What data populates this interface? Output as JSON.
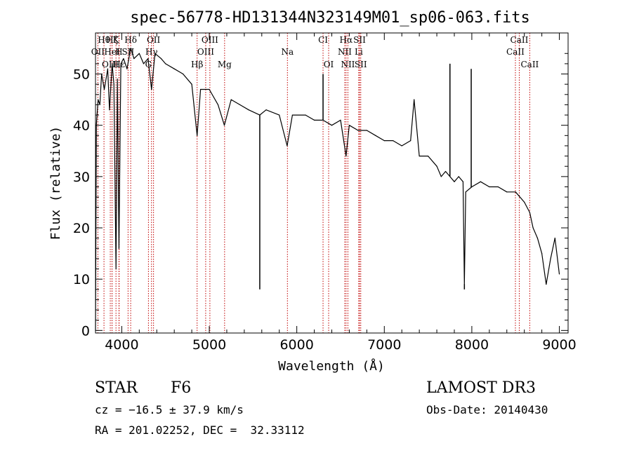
{
  "chart_data": {
    "type": "line",
    "title": "spec-56778-HD131344N323149M01_sp06-063.fits",
    "xlabel": "Wavelength (Å)",
    "ylabel": "Flux (relative)",
    "xlim": [
      3700,
      9100
    ],
    "ylim": [
      -0.5,
      58
    ],
    "xticks": [
      4000,
      5000,
      6000,
      7000,
      8000,
      9000
    ],
    "yticks": [
      0,
      10,
      20,
      30,
      40,
      50
    ],
    "grid": false,
    "series": [
      {
        "name": "spectrum",
        "x": [
          3700,
          3710,
          3730,
          3750,
          3770,
          3800,
          3820,
          3840,
          3860,
          3890,
          3910,
          3934,
          3950,
          3968,
          3990,
          4020,
          4060,
          4102,
          4140,
          4200,
          4250,
          4300,
          4340,
          4380,
          4450,
          4500,
          4600,
          4700,
          4800,
          4861,
          4900,
          5000,
          5100,
          5172,
          5250,
          5350,
          5450,
          5577,
          5650,
          5800,
          5890,
          5950,
          6100,
          6200,
          6300,
          6400,
          6500,
          6563,
          6600,
          6700,
          6800,
          6900,
          7000,
          7100,
          7200,
          7300,
          7340,
          7400,
          7500,
          7600,
          7650,
          7700,
          7750,
          7800,
          7850,
          7900,
          7915,
          7930,
          8000,
          8100,
          8200,
          8300,
          8400,
          8500,
          8600,
          8662,
          8700,
          8750,
          8800,
          8850,
          8900,
          8950,
          9000
        ],
        "y": [
          0,
          40,
          45,
          44,
          50,
          47,
          49,
          51,
          43,
          52,
          48,
          12,
          49,
          16,
          52,
          53,
          51,
          55,
          53,
          54,
          52,
          53,
          47,
          54,
          53,
          52,
          51,
          50,
          48,
          38,
          47,
          47,
          44,
          40,
          45,
          44,
          43,
          42,
          43,
          42,
          36,
          42,
          42,
          41,
          41,
          40,
          41,
          34,
          40,
          39,
          39,
          38,
          37,
          37,
          36,
          37,
          45,
          34,
          34,
          32,
          30,
          31,
          30,
          29,
          30,
          29,
          9,
          27,
          28,
          29,
          28,
          28,
          27,
          27,
          25,
          23,
          20,
          18,
          15,
          9,
          14,
          18,
          11
        ]
      }
    ],
    "emission_spikes": [
      {
        "x": 5577,
        "y": 8
      },
      {
        "x": 6300,
        "y": 50
      },
      {
        "x": 7340,
        "y": 45
      },
      {
        "x": 7750,
        "y": 52
      },
      {
        "x": 7915,
        "y": 8
      },
      {
        "x": 7993,
        "y": 51
      }
    ],
    "line_markers": [
      {
        "label": "Hθ",
        "x": 3797,
        "row": 0
      },
      {
        "label": "K",
        "x": 3934,
        "row": 0
      },
      {
        "label": "Hζ",
        "x": 3889,
        "row": 0
      },
      {
        "label": "Hδ",
        "x": 4102,
        "row": 0
      },
      {
        "label": "OII",
        "x": 4363,
        "row": 0
      },
      {
        "label": "OIII",
        "x": 5007,
        "row": 0
      },
      {
        "label": "CI",
        "x": 6300,
        "row": 0
      },
      {
        "label": "Hα",
        "x": 6563,
        "row": 0
      },
      {
        "label": "SII",
        "x": 6717,
        "row": 0
      },
      {
        "label": "CaII",
        "x": 8542,
        "row": 0
      },
      {
        "label": "OII",
        "x": 3727,
        "row": 1
      },
      {
        "label": "H",
        "x": 3968,
        "row": 1
      },
      {
        "label": "HeI",
        "x": 3889,
        "row": 1
      },
      {
        "label": "SII",
        "x": 4072,
        "row": 1
      },
      {
        "label": "Hγ",
        "x": 4340,
        "row": 1
      },
      {
        "label": "OIII",
        "x": 4959,
        "row": 1
      },
      {
        "label": "Na",
        "x": 5893,
        "row": 1
      },
      {
        "label": "NII",
        "x": 6548,
        "row": 1
      },
      {
        "label": "Li",
        "x": 6708,
        "row": 1
      },
      {
        "label": "CaII",
        "x": 8498,
        "row": 1
      },
      {
        "label": "OIII",
        "x": 3869,
        "row": 2
      },
      {
        "label": "Hε",
        "x": 3970,
        "row": 2
      },
      {
        "label": "G",
        "x": 4305,
        "row": 2
      },
      {
        "label": "Hβ",
        "x": 4861,
        "row": 2
      },
      {
        "label": "Mg",
        "x": 5175,
        "row": 2
      },
      {
        "label": "OI",
        "x": 6364,
        "row": 2
      },
      {
        "label": "NII",
        "x": 6584,
        "row": 2
      },
      {
        "label": "SII",
        "x": 6731,
        "row": 2
      },
      {
        "label": "CaII",
        "x": 8662,
        "row": 2
      }
    ]
  },
  "info": {
    "object_class": "STAR",
    "subclass": "F6",
    "survey": "LAMOST DR3",
    "cz": "cz = −16.5 ± 37.9 km/s",
    "obs_date": "Obs-Date: 20140430",
    "coords": "RA = 201.02252, DEC =  32.33112"
  }
}
